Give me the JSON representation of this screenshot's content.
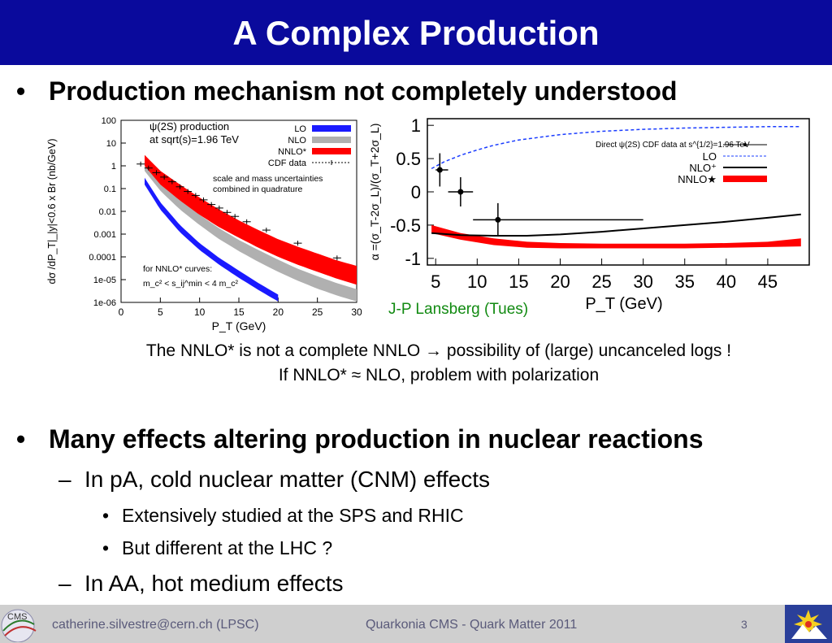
{
  "slide": {
    "title": "A Complex Production",
    "bullet1": "Production mechanism not completely understood",
    "note_line1": "The NNLO* is not a complete NNLO → possibility of (large) uncanceled logs !",
    "note_line2": "If NNLO* ≈ NLO, problem with polarization",
    "credit": "J-P Lansberg (Tues)",
    "bullet2": "Many effects altering production in nuclear reactions",
    "sub_a": "In pA, cold nuclear matter (CNM) effects",
    "sub_a_items": [
      "Extensively studied at the SPS and RHIC",
      "But different at the LHC ?"
    ],
    "sub_b": "In AA, hot medium effects"
  },
  "footer": {
    "email": "catherine.silvestre@cern.ch (LPSC)",
    "conference": "Quarkonia CMS - Quark Matter 2011",
    "page": "3",
    "logo_left_text": "CMS"
  },
  "chart_data": [
    {
      "type": "line",
      "annotation_lines": [
        "ψ(2S) production",
        "at sqrt(s)=1.96 TeV"
      ],
      "note_lines": [
        "scale and mass uncertainties",
        "combined in quadrature"
      ],
      "footnote_lines": [
        "for NNLO* curves:",
        "m_c² < s_ij^min < 4 m_c²"
      ],
      "xlabel": "P_T (GeV)",
      "ylabel": "dσ /dP_T|_|y|<0.6 x Br  (nb/GeV)",
      "log_y": true,
      "xlim": [
        0,
        30
      ],
      "ylim": [
        1e-06,
        100
      ],
      "x_ticks": [
        "0",
        "5",
        "10",
        "15",
        "20",
        "25",
        "30"
      ],
      "y_ticks": [
        "100",
        "10",
        "1",
        "0.1",
        "0.01",
        "0.001",
        "0.0001",
        "1e-05",
        "1e-06"
      ],
      "legend": [
        {
          "name": "LO",
          "color": "#1a1aff"
        },
        {
          "name": "NLO",
          "color": "#b0b0b0"
        },
        {
          "name": "NNLO*",
          "color": "#ff0000"
        },
        {
          "name": "CDF data",
          "color": "#000000"
        }
      ],
      "series": [
        {
          "name": "LO",
          "x": [
            3,
            5,
            7.5,
            10,
            12.5,
            15,
            17.5,
            20
          ],
          "lower": [
            0.15,
            0.012,
            0.0012,
            0.0002,
            4.5e-05,
            1.2e-05,
            3.5e-06,
            1.1e-06
          ],
          "upper": [
            0.3,
            0.025,
            0.0025,
            0.0004,
            9e-05,
            2.5e-05,
            7e-06,
            2.2e-06
          ]
        },
        {
          "name": "NLO",
          "x": [
            3,
            5,
            7.5,
            10,
            12.5,
            15,
            17.5,
            20,
            22.5,
            25,
            27.5,
            30
          ],
          "lower": [
            0.6,
            0.08,
            0.012,
            0.0025,
            0.0006,
            0.00018,
            6e-05,
            2.2e-05,
            9e-06,
            4e-06,
            2e-06,
            1.1e-06
          ],
          "upper": [
            1.5,
            0.2,
            0.035,
            0.007,
            0.0018,
            0.00055,
            0.0002,
            7.5e-05,
            3e-05,
            1.4e-05,
            7e-06,
            3.8e-06
          ]
        },
        {
          "name": "NNLO*",
          "x": [
            3,
            5,
            7.5,
            10,
            12.5,
            15,
            17.5,
            20,
            22.5,
            25,
            27.5,
            30
          ],
          "lower": [
            1,
            0.15,
            0.03,
            0.007,
            0.002,
            0.0007,
            0.00025,
            0.0001,
            4.5e-05,
            2.2e-05,
            1.1e-05,
            6e-06
          ],
          "upper": [
            3,
            0.6,
            0.15,
            0.04,
            0.012,
            0.004,
            0.0015,
            0.0006,
            0.00028,
            0.00014,
            7e-05,
            4e-05
          ]
        },
        {
          "name": "CDF data",
          "x": [
            2.5,
            3.5,
            4.5,
            5.5,
            6.5,
            7.5,
            8.5,
            9.5,
            10.5,
            11.5,
            12.5,
            13.5,
            14.5,
            16,
            18.5,
            22.5,
            27.5
          ],
          "y": [
            1.2,
            0.8,
            0.5,
            0.32,
            0.2,
            0.12,
            0.075,
            0.05,
            0.032,
            0.02,
            0.014,
            0.009,
            0.006,
            0.0035,
            0.0015,
            0.0004,
            9e-05
          ]
        }
      ]
    },
    {
      "type": "line",
      "xlabel": "P_T (GeV)",
      "ylabel": "α =(σ_T-2σ_L)/(σ_T+2σ_L)",
      "xlim": [
        4,
        50
      ],
      "ylim": [
        -1.1,
        1.1
      ],
      "x_ticks": [
        "5",
        "10",
        "15",
        "20",
        "25",
        "30",
        "35",
        "40",
        "45"
      ],
      "y_ticks": [
        "1",
        "0.5",
        "0",
        "-0.5",
        "-1"
      ],
      "legend_title": "Direct ψ(2S) CDF data at s^{1/2}=1.96 TeV",
      "legend": [
        {
          "name": "LO",
          "color": "#1a3cff"
        },
        {
          "name": "NLO⁺",
          "color": "#000000"
        },
        {
          "name": "NNLO★",
          "color": "#ff0000"
        }
      ],
      "series": [
        {
          "name": "LO",
          "x": [
            4.5,
            6,
            8,
            10,
            12,
            15,
            20,
            25,
            30,
            35,
            40,
            45,
            49
          ],
          "y": [
            0.35,
            0.45,
            0.55,
            0.63,
            0.7,
            0.78,
            0.86,
            0.91,
            0.94,
            0.96,
            0.97,
            0.98,
            0.98
          ]
        },
        {
          "name": "NLO⁺",
          "x": [
            4.5,
            8,
            12,
            16,
            20,
            25,
            30,
            35,
            40,
            45,
            49
          ],
          "y": [
            -0.62,
            -0.65,
            -0.66,
            -0.66,
            -0.64,
            -0.6,
            -0.55,
            -0.5,
            -0.45,
            -0.39,
            -0.34
          ]
        },
        {
          "name": "NNLO★",
          "x": [
            4.5,
            8,
            12,
            16,
            20,
            25,
            30,
            35,
            40,
            45,
            49
          ],
          "lower": [
            -0.62,
            -0.72,
            -0.8,
            -0.84,
            -0.85,
            -0.85,
            -0.85,
            -0.85,
            -0.84,
            -0.83,
            -0.82
          ],
          "upper": [
            -0.5,
            -0.62,
            -0.7,
            -0.75,
            -0.77,
            -0.78,
            -0.78,
            -0.78,
            -0.77,
            -0.75,
            -0.7
          ]
        },
        {
          "name": "CDF data",
          "x": [
            5.5,
            8,
            12.5
          ],
          "y": [
            0.33,
            0.0,
            -0.42
          ],
          "x_low": [
            5,
            6.5,
            9.5
          ],
          "x_high": [
            6.5,
            9.5,
            30
          ],
          "y_err": [
            0.25,
            0.22,
            0.25
          ]
        }
      ]
    }
  ]
}
